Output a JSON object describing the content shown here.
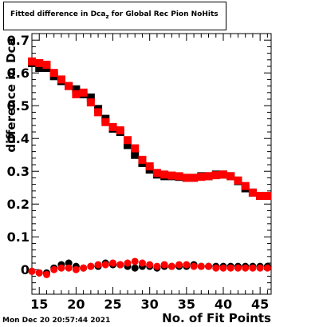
{
  "header": {
    "title_main": "Fitted difference in Dca",
    "title_sub": "z",
    "title_rest": " for Global Rec Pion NoHits"
  },
  "axis_labels": {
    "y": "difference in Dca",
    "x": "No. of Fit Points"
  },
  "footer": {
    "timestamp": "Mon Dec 20 20:57:44 2021"
  },
  "chart_data": {
    "type": "scatter",
    "title": "Fitted difference in Dcaz for Global Rec Pion NoHits",
    "xlabel": "No. of Fit Points",
    "ylabel": "difference in Dca",
    "xlim": [
      14,
      46.5
    ],
    "ylim": [
      -0.075,
      0.72
    ],
    "x_ticks": [
      15,
      20,
      25,
      30,
      35,
      40,
      45
    ],
    "y_ticks": [
      0,
      0.1,
      0.2,
      0.3,
      0.4,
      0.5,
      0.6,
      0.7
    ],
    "grid": false,
    "series": [
      {
        "marker": "square",
        "color": "#000000",
        "x": [
          14,
          15,
          16,
          17,
          18,
          19,
          20,
          21,
          22,
          23,
          24,
          25,
          26,
          27,
          28,
          29,
          30,
          31,
          32,
          33,
          34,
          35,
          36,
          37,
          38,
          39,
          40,
          41,
          42,
          43,
          44,
          45,
          46
        ],
        "values": [
          0.63,
          0.615,
          0.615,
          0.59,
          0.575,
          0.56,
          0.55,
          0.535,
          0.525,
          0.49,
          0.46,
          0.43,
          0.42,
          0.38,
          0.35,
          0.325,
          0.305,
          0.29,
          0.285,
          0.285,
          0.283,
          0.28,
          0.28,
          0.285,
          0.285,
          0.29,
          0.29,
          0.285,
          0.27,
          0.248,
          0.235,
          0.225,
          0.225
        ]
      },
      {
        "marker": "square",
        "color": "#ff0000",
        "x": [
          14,
          15,
          16,
          17,
          18,
          19,
          20,
          21,
          22,
          23,
          24,
          25,
          26,
          27,
          28,
          29,
          30,
          31,
          32,
          33,
          34,
          35,
          36,
          37,
          38,
          39,
          40,
          41,
          42,
          43,
          44,
          45,
          46
        ],
        "values": [
          0.635,
          0.63,
          0.625,
          0.6,
          0.58,
          0.56,
          0.535,
          0.54,
          0.51,
          0.48,
          0.45,
          0.435,
          0.425,
          0.395,
          0.37,
          0.335,
          0.315,
          0.295,
          0.29,
          0.287,
          0.285,
          0.28,
          0.28,
          0.283,
          0.285,
          0.288,
          0.29,
          0.285,
          0.272,
          0.255,
          0.235,
          0.225,
          0.225
        ]
      },
      {
        "marker": "circle",
        "color": "#000000",
        "x": [
          14,
          15,
          16,
          17,
          18,
          19,
          20,
          21,
          22,
          23,
          24,
          25,
          26,
          27,
          28,
          29,
          30,
          31,
          32,
          33,
          34,
          35,
          36,
          37,
          38,
          39,
          40,
          41,
          42,
          43,
          44,
          45,
          46
        ],
        "values": [
          -0.005,
          -0.01,
          -0.01,
          0.005,
          0.015,
          0.02,
          0.01,
          0.005,
          0.01,
          0.01,
          0.02,
          0.015,
          0.015,
          0.01,
          0.005,
          0.01,
          0.01,
          0.005,
          0.01,
          0.01,
          0.01,
          0.01,
          0.015,
          0.01,
          0.01,
          0.01,
          0.01,
          0.01,
          0.01,
          0.01,
          0.01,
          0.01,
          0.01
        ]
      },
      {
        "marker": "circle",
        "color": "#ff0000",
        "x": [
          14,
          15,
          16,
          17,
          18,
          19,
          20,
          21,
          22,
          23,
          24,
          25,
          26,
          27,
          28,
          29,
          30,
          31,
          32,
          33,
          34,
          35,
          36,
          37,
          38,
          39,
          40,
          41,
          42,
          43,
          44,
          45,
          46
        ],
        "values": [
          -0.005,
          -0.01,
          -0.015,
          0.0,
          0.005,
          0.005,
          0.0,
          0.005,
          0.01,
          0.015,
          0.015,
          0.02,
          0.015,
          0.02,
          0.025,
          0.02,
          0.015,
          0.01,
          0.015,
          0.01,
          0.015,
          0.015,
          0.01,
          0.01,
          0.01,
          0.005,
          0.005,
          0.005,
          0.005,
          0.005,
          0.005,
          0.005,
          0.005
        ]
      }
    ]
  }
}
